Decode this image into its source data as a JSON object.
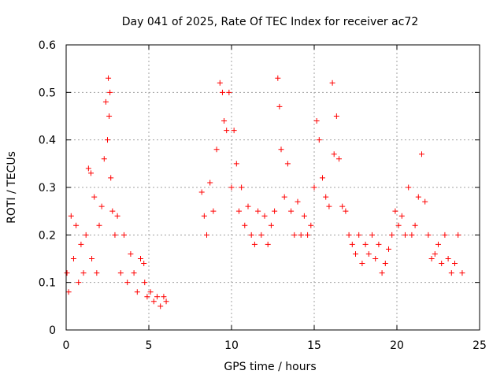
{
  "chart_data": {
    "type": "scatter",
    "title": "Day 041 of 2025, Rate Of TEC Index for receiver ac72",
    "xlabel": "GPS time / hours",
    "ylabel": "ROTI / TECUs",
    "xlim": [
      0,
      25
    ],
    "ylim": [
      0,
      0.6
    ],
    "x_ticks": [
      0,
      5,
      10,
      15,
      20,
      25
    ],
    "x_tick_labels": [
      "0",
      "5",
      "10",
      "15",
      "20",
      "25"
    ],
    "y_ticks": [
      0,
      0.1,
      0.2,
      0.3,
      0.4,
      0.5,
      0.6
    ],
    "y_tick_labels": [
      "0",
      "0.1",
      "0.2",
      "0.3",
      "0.4",
      "0.5",
      "0.6"
    ],
    "grid": true,
    "legend": "none",
    "marker": "+",
    "series": [
      {
        "color": "#ff0000",
        "x": [
          0.05,
          0.15,
          0.3,
          0.45,
          0.6,
          0.75,
          0.9,
          1.05,
          1.2,
          1.35,
          1.5,
          1.55,
          1.7,
          1.85,
          2.0,
          2.15,
          2.3,
          2.4,
          2.5,
          2.55,
          2.6,
          2.65,
          2.7,
          2.8,
          2.95,
          3.1,
          3.3,
          3.5,
          3.7,
          3.9,
          4.1,
          4.3,
          4.5,
          4.7,
          4.75,
          4.9,
          5.1,
          5.3,
          5.5,
          5.7,
          5.9,
          6.05,
          8.2,
          8.35,
          8.5,
          8.7,
          8.9,
          9.1,
          9.3,
          9.45,
          9.55,
          9.7,
          9.85,
          10.0,
          10.15,
          10.3,
          10.45,
          10.6,
          10.8,
          11.0,
          11.2,
          11.4,
          11.6,
          11.8,
          12.0,
          12.2,
          12.4,
          12.6,
          12.8,
          12.9,
          13.0,
          13.2,
          13.4,
          13.6,
          13.8,
          14.0,
          14.2,
          14.4,
          14.6,
          14.8,
          15.0,
          15.15,
          15.3,
          15.5,
          15.7,
          15.9,
          16.1,
          16.2,
          16.35,
          16.5,
          16.7,
          16.9,
          17.1,
          17.3,
          17.5,
          17.7,
          17.9,
          18.1,
          18.3,
          18.5,
          18.7,
          18.9,
          19.1,
          19.3,
          19.5,
          19.7,
          19.9,
          20.1,
          20.3,
          20.5,
          20.7,
          20.9,
          21.1,
          21.3,
          21.5,
          21.7,
          21.9,
          22.1,
          22.3,
          22.5,
          22.7,
          22.9,
          23.1,
          23.3,
          23.5,
          23.7,
          23.95
        ],
        "y": [
          0.12,
          0.08,
          0.24,
          0.15,
          0.22,
          0.1,
          0.18,
          0.12,
          0.2,
          0.34,
          0.33,
          0.15,
          0.28,
          0.12,
          0.22,
          0.26,
          0.36,
          0.48,
          0.4,
          0.53,
          0.45,
          0.5,
          0.32,
          0.25,
          0.2,
          0.24,
          0.12,
          0.2,
          0.1,
          0.16,
          0.12,
          0.08,
          0.15,
          0.14,
          0.1,
          0.07,
          0.08,
          0.06,
          0.07,
          0.05,
          0.07,
          0.06,
          0.29,
          0.24,
          0.2,
          0.31,
          0.25,
          0.38,
          0.52,
          0.5,
          0.44,
          0.42,
          0.5,
          0.3,
          0.42,
          0.35,
          0.25,
          0.3,
          0.22,
          0.26,
          0.2,
          0.18,
          0.25,
          0.2,
          0.24,
          0.18,
          0.22,
          0.25,
          0.53,
          0.47,
          0.38,
          0.28,
          0.35,
          0.25,
          0.2,
          0.27,
          0.2,
          0.24,
          0.2,
          0.22,
          0.3,
          0.44,
          0.4,
          0.32,
          0.28,
          0.26,
          0.52,
          0.37,
          0.45,
          0.36,
          0.26,
          0.25,
          0.2,
          0.18,
          0.16,
          0.2,
          0.14,
          0.18,
          0.16,
          0.2,
          0.15,
          0.18,
          0.12,
          0.14,
          0.17,
          0.2,
          0.25,
          0.22,
          0.24,
          0.2,
          0.3,
          0.2,
          0.22,
          0.28,
          0.37,
          0.27,
          0.2,
          0.15,
          0.16,
          0.18,
          0.14,
          0.2,
          0.15,
          0.12,
          0.14,
          0.2,
          0.12
        ]
      }
    ]
  }
}
